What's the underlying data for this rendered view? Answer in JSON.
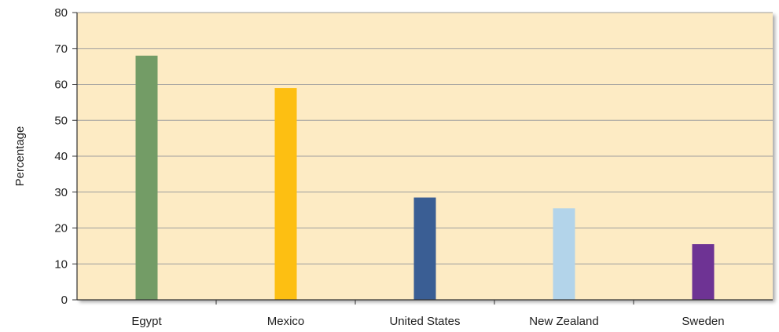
{
  "chart_data": {
    "type": "bar",
    "title": "",
    "xlabel": "",
    "ylabel": "Percentage",
    "categories": [
      "Egypt",
      "Mexico",
      "United States",
      "New Zealand",
      "Sweden"
    ],
    "values": [
      68,
      59,
      28.5,
      25.5,
      15.5
    ],
    "ylim": [
      0,
      80
    ],
    "yticks": [
      "0",
      "10",
      "20",
      "30",
      "40",
      "50",
      "60",
      "70",
      "80"
    ],
    "grid": true,
    "legend": "none",
    "colors": {
      "plot_background": "#fdebc4",
      "grid": "#9e9e9e",
      "axis": "#333333",
      "bars": [
        "#739c66",
        "#fdbf12",
        "#3a5e94",
        "#b3d4ea",
        "#6e3394"
      ]
    }
  }
}
